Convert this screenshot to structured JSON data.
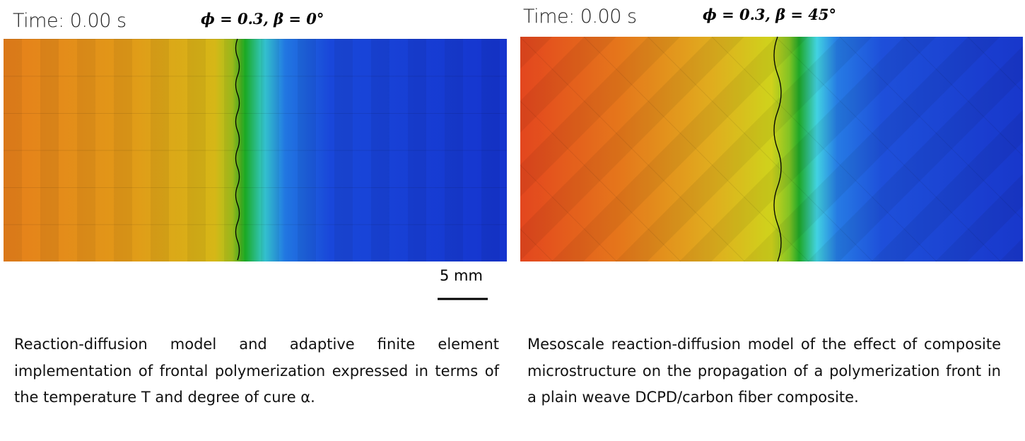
{
  "panels": [
    {
      "time_label": "Time: 0.00 s",
      "parameters": "ϕ = 0.3, β = 0°",
      "scale_bar": "5 mm",
      "caption": "Reaction-diffusion model and adaptive finite element implementation of frontal polymerization expressed in terms of the temperature T and degree of cure α."
    },
    {
      "time_label": "Time: 0.00 s",
      "parameters": "ϕ = 0.3, β = 45°",
      "caption": "Mesoscale reaction-diffusion model of the effect of composite microstructure on the propagation of a polymerization front in a plain weave DCPD/carbon fiber composite."
    }
  ]
}
